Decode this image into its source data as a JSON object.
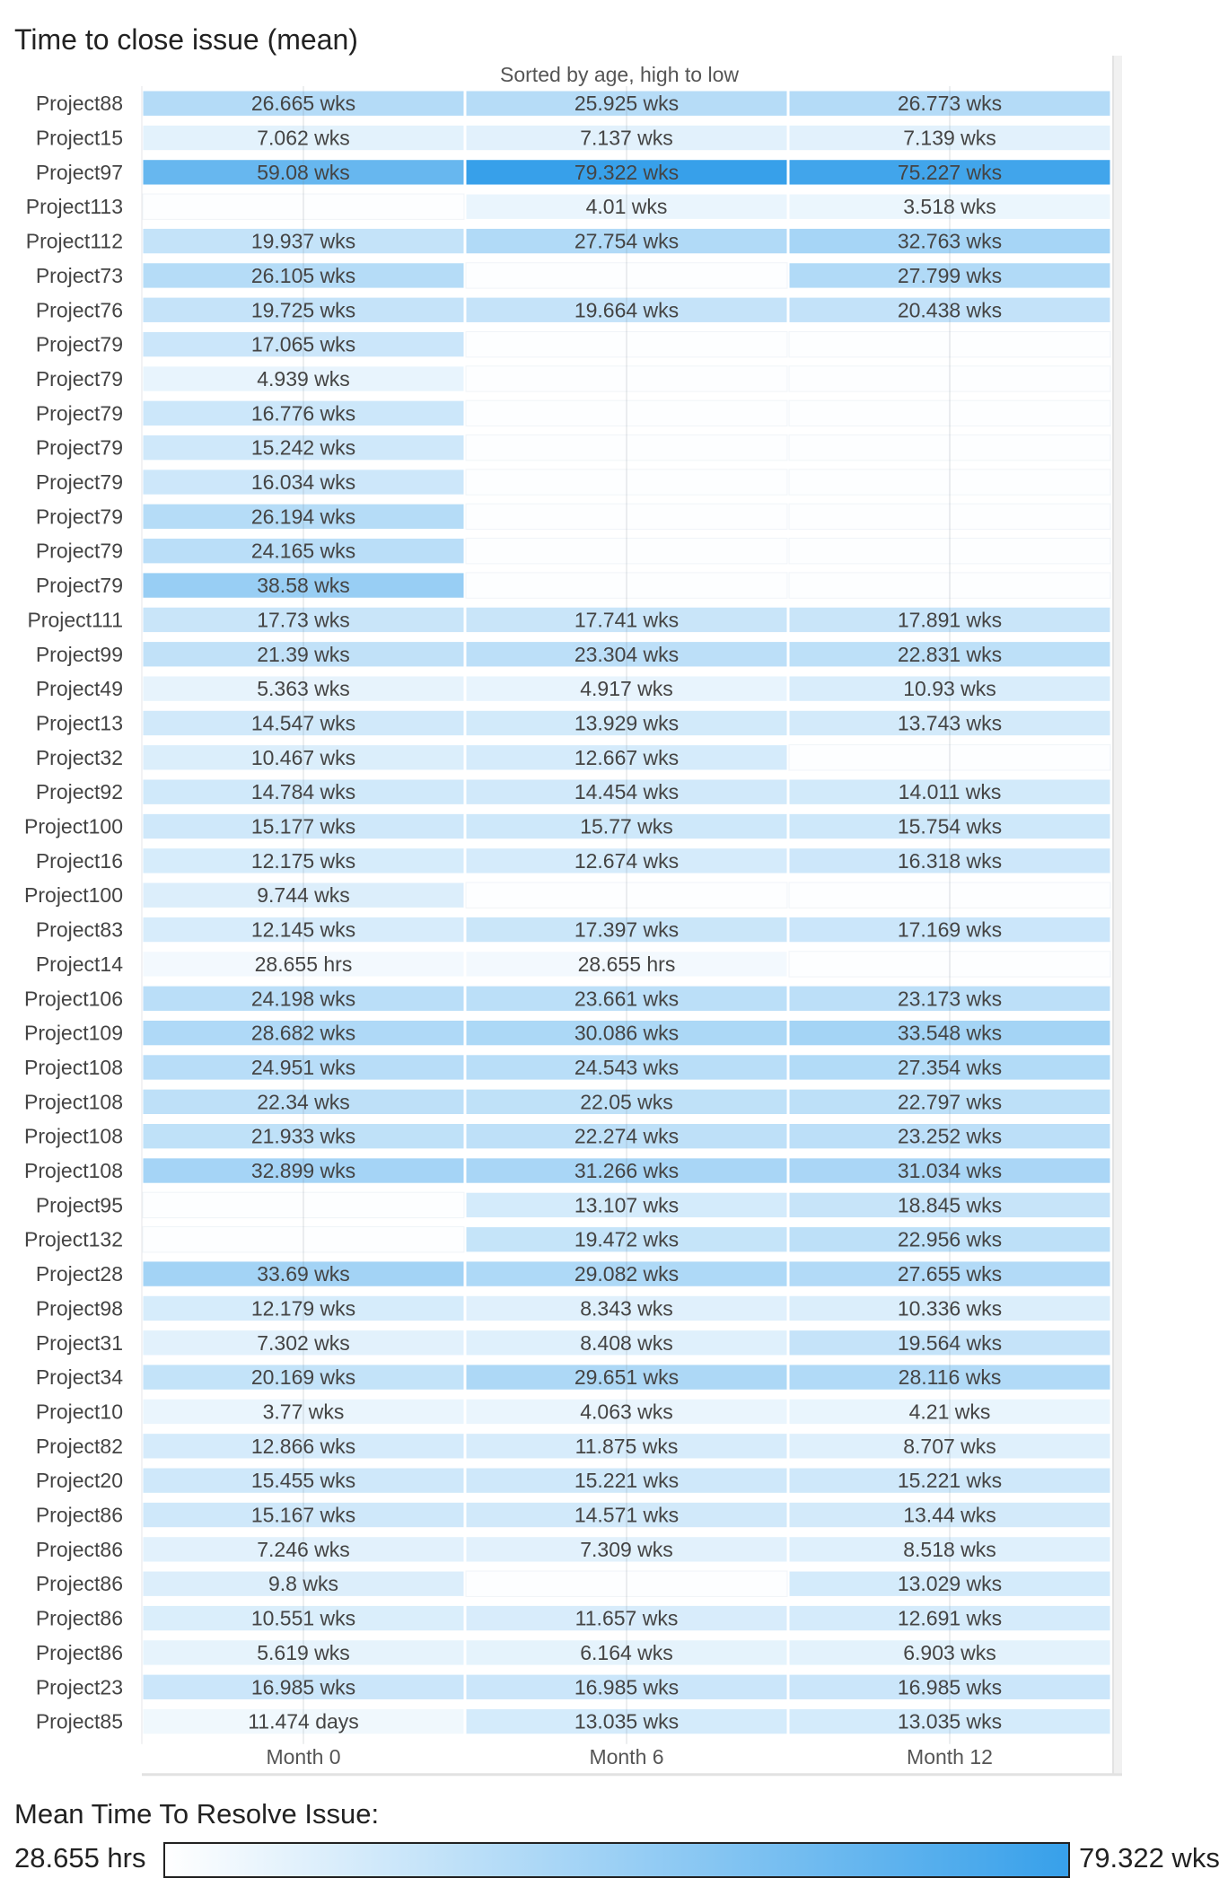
{
  "chart_data": {
    "type": "heatmap",
    "title": "Time to close issue (mean)",
    "subtitle": "Sorted by age, high to low",
    "columns": [
      "Month 0",
      "Month 6",
      "Month 12"
    ],
    "rows": [
      {
        "label": "Project88",
        "cells": [
          {
            "text": "26.665 wks",
            "value": 26.665
          },
          {
            "text": "25.925 wks",
            "value": 25.925
          },
          {
            "text": "26.773 wks",
            "value": 26.773
          }
        ]
      },
      {
        "label": "Project15",
        "cells": [
          {
            "text": "7.062 wks",
            "value": 7.062
          },
          {
            "text": "7.137 wks",
            "value": 7.137
          },
          {
            "text": "7.139 wks",
            "value": 7.139
          }
        ]
      },
      {
        "label": "Project97",
        "cells": [
          {
            "text": "59.08 wks",
            "value": 59.08
          },
          {
            "text": "79.322 wks",
            "value": 79.322
          },
          {
            "text": "75.227 wks",
            "value": 75.227
          }
        ]
      },
      {
        "label": "Project113",
        "cells": [
          null,
          {
            "text": "4.01 wks",
            "value": 4.01
          },
          {
            "text": "3.518 wks",
            "value": 3.518
          }
        ]
      },
      {
        "label": "Project112",
        "cells": [
          {
            "text": "19.937 wks",
            "value": 19.937
          },
          {
            "text": "27.754 wks",
            "value": 27.754
          },
          {
            "text": "32.763 wks",
            "value": 32.763
          }
        ]
      },
      {
        "label": "Project73",
        "cells": [
          {
            "text": "26.105 wks",
            "value": 26.105
          },
          null,
          {
            "text": "27.799 wks",
            "value": 27.799
          }
        ]
      },
      {
        "label": "Project76",
        "cells": [
          {
            "text": "19.725 wks",
            "value": 19.725
          },
          {
            "text": "19.664 wks",
            "value": 19.664
          },
          {
            "text": "20.438 wks",
            "value": 20.438
          }
        ]
      },
      {
        "label": "Project79",
        "cells": [
          {
            "text": "17.065 wks",
            "value": 17.065
          },
          null,
          null
        ]
      },
      {
        "label": "Project79",
        "cells": [
          {
            "text": "4.939 wks",
            "value": 4.939
          },
          null,
          null
        ]
      },
      {
        "label": "Project79",
        "cells": [
          {
            "text": "16.776 wks",
            "value": 16.776
          },
          null,
          null
        ]
      },
      {
        "label": "Project79",
        "cells": [
          {
            "text": "15.242 wks",
            "value": 15.242
          },
          null,
          null
        ]
      },
      {
        "label": "Project79",
        "cells": [
          {
            "text": "16.034 wks",
            "value": 16.034
          },
          null,
          null
        ]
      },
      {
        "label": "Project79",
        "cells": [
          {
            "text": "26.194 wks",
            "value": 26.194
          },
          null,
          null
        ]
      },
      {
        "label": "Project79",
        "cells": [
          {
            "text": "24.165 wks",
            "value": 24.165
          },
          null,
          null
        ]
      },
      {
        "label": "Project79",
        "cells": [
          {
            "text": "38.58 wks",
            "value": 38.58
          },
          null,
          null
        ]
      },
      {
        "label": "Project111",
        "cells": [
          {
            "text": "17.73 wks",
            "value": 17.73
          },
          {
            "text": "17.741 wks",
            "value": 17.741
          },
          {
            "text": "17.891 wks",
            "value": 17.891
          }
        ]
      },
      {
        "label": "Project99",
        "cells": [
          {
            "text": "21.39 wks",
            "value": 21.39
          },
          {
            "text": "23.304 wks",
            "value": 23.304
          },
          {
            "text": "22.831 wks",
            "value": 22.831
          }
        ]
      },
      {
        "label": "Project49",
        "cells": [
          {
            "text": "5.363 wks",
            "value": 5.363
          },
          {
            "text": "4.917 wks",
            "value": 4.917
          },
          {
            "text": "10.93 wks",
            "value": 10.93
          }
        ]
      },
      {
        "label": "Project13",
        "cells": [
          {
            "text": "14.547 wks",
            "value": 14.547
          },
          {
            "text": "13.929 wks",
            "value": 13.929
          },
          {
            "text": "13.743 wks",
            "value": 13.743
          }
        ]
      },
      {
        "label": "Project32",
        "cells": [
          {
            "text": "10.467 wks",
            "value": 10.467
          },
          {
            "text": "12.667 wks",
            "value": 12.667
          },
          null
        ]
      },
      {
        "label": "Project92",
        "cells": [
          {
            "text": "14.784 wks",
            "value": 14.784
          },
          {
            "text": "14.454 wks",
            "value": 14.454
          },
          {
            "text": "14.011 wks",
            "value": 14.011
          }
        ]
      },
      {
        "label": "Project100",
        "cells": [
          {
            "text": "15.177 wks",
            "value": 15.177
          },
          {
            "text": "15.77 wks",
            "value": 15.77
          },
          {
            "text": "15.754 wks",
            "value": 15.754
          }
        ]
      },
      {
        "label": "Project16",
        "cells": [
          {
            "text": "12.175 wks",
            "value": 12.175
          },
          {
            "text": "12.674 wks",
            "value": 12.674
          },
          {
            "text": "16.318 wks",
            "value": 16.318
          }
        ]
      },
      {
        "label": "Project100",
        "cells": [
          {
            "text": "9.744 wks",
            "value": 9.744
          },
          null,
          null
        ]
      },
      {
        "label": "Project83",
        "cells": [
          {
            "text": "12.145 wks",
            "value": 12.145
          },
          {
            "text": "17.397 wks",
            "value": 17.397
          },
          {
            "text": "17.169 wks",
            "value": 17.169
          }
        ]
      },
      {
        "label": "Project14",
        "cells": [
          {
            "text": "28.655 hrs",
            "value": 0.17
          },
          {
            "text": "28.655 hrs",
            "value": 0.17
          },
          null
        ]
      },
      {
        "label": "Project106",
        "cells": [
          {
            "text": "24.198 wks",
            "value": 24.198
          },
          {
            "text": "23.661 wks",
            "value": 23.661
          },
          {
            "text": "23.173 wks",
            "value": 23.173
          }
        ]
      },
      {
        "label": "Project109",
        "cells": [
          {
            "text": "28.682 wks",
            "value": 28.682
          },
          {
            "text": "30.086 wks",
            "value": 30.086
          },
          {
            "text": "33.548 wks",
            "value": 33.548
          }
        ]
      },
      {
        "label": "Project108",
        "cells": [
          {
            "text": "24.951 wks",
            "value": 24.951
          },
          {
            "text": "24.543 wks",
            "value": 24.543
          },
          {
            "text": "27.354 wks",
            "value": 27.354
          }
        ]
      },
      {
        "label": "Project108",
        "cells": [
          {
            "text": "22.34 wks",
            "value": 22.34
          },
          {
            "text": "22.05 wks",
            "value": 22.05
          },
          {
            "text": "22.797 wks",
            "value": 22.797
          }
        ]
      },
      {
        "label": "Project108",
        "cells": [
          {
            "text": "21.933 wks",
            "value": 21.933
          },
          {
            "text": "22.274 wks",
            "value": 22.274
          },
          {
            "text": "23.252 wks",
            "value": 23.252
          }
        ]
      },
      {
        "label": "Project108",
        "cells": [
          {
            "text": "32.899 wks",
            "value": 32.899
          },
          {
            "text": "31.266 wks",
            "value": 31.266
          },
          {
            "text": "31.034 wks",
            "value": 31.034
          }
        ]
      },
      {
        "label": "Project95",
        "cells": [
          null,
          {
            "text": "13.107 wks",
            "value": 13.107
          },
          {
            "text": "18.845 wks",
            "value": 18.845
          }
        ]
      },
      {
        "label": "Project132",
        "cells": [
          null,
          {
            "text": "19.472 wks",
            "value": 19.472
          },
          {
            "text": "22.956 wks",
            "value": 22.956
          }
        ]
      },
      {
        "label": "Project28",
        "cells": [
          {
            "text": "33.69 wks",
            "value": 33.69
          },
          {
            "text": "29.082 wks",
            "value": 29.082
          },
          {
            "text": "27.655 wks",
            "value": 27.655
          }
        ]
      },
      {
        "label": "Project98",
        "cells": [
          {
            "text": "12.179 wks",
            "value": 12.179
          },
          {
            "text": "8.343 wks",
            "value": 8.343
          },
          {
            "text": "10.336 wks",
            "value": 10.336
          }
        ]
      },
      {
        "label": "Project31",
        "cells": [
          {
            "text": "7.302 wks",
            "value": 7.302
          },
          {
            "text": "8.408 wks",
            "value": 8.408
          },
          {
            "text": "19.564 wks",
            "value": 19.564
          }
        ]
      },
      {
        "label": "Project34",
        "cells": [
          {
            "text": "20.169 wks",
            "value": 20.169
          },
          {
            "text": "29.651 wks",
            "value": 29.651
          },
          {
            "text": "28.116 wks",
            "value": 28.116
          }
        ]
      },
      {
        "label": "Project10",
        "cells": [
          {
            "text": "3.77 wks",
            "value": 3.77
          },
          {
            "text": "4.063 wks",
            "value": 4.063
          },
          {
            "text": "4.21 wks",
            "value": 4.21
          }
        ]
      },
      {
        "label": "Project82",
        "cells": [
          {
            "text": "12.866 wks",
            "value": 12.866
          },
          {
            "text": "11.875 wks",
            "value": 11.875
          },
          {
            "text": "8.707 wks",
            "value": 8.707
          }
        ]
      },
      {
        "label": "Project20",
        "cells": [
          {
            "text": "15.455 wks",
            "value": 15.455
          },
          {
            "text": "15.221 wks",
            "value": 15.221
          },
          {
            "text": "15.221 wks",
            "value": 15.221
          }
        ]
      },
      {
        "label": "Project86",
        "cells": [
          {
            "text": "15.167 wks",
            "value": 15.167
          },
          {
            "text": "14.571 wks",
            "value": 14.571
          },
          {
            "text": "13.44 wks",
            "value": 13.44
          }
        ]
      },
      {
        "label": "Project86",
        "cells": [
          {
            "text": "7.246 wks",
            "value": 7.246
          },
          {
            "text": "7.309 wks",
            "value": 7.309
          },
          {
            "text": "8.518 wks",
            "value": 8.518
          }
        ]
      },
      {
        "label": "Project86",
        "cells": [
          {
            "text": "9.8 wks",
            "value": 9.8
          },
          null,
          {
            "text": "13.029 wks",
            "value": 13.029
          }
        ]
      },
      {
        "label": "Project86",
        "cells": [
          {
            "text": "10.551 wks",
            "value": 10.551
          },
          {
            "text": "11.657 wks",
            "value": 11.657
          },
          {
            "text": "12.691 wks",
            "value": 12.691
          }
        ]
      },
      {
        "label": "Project86",
        "cells": [
          {
            "text": "5.619 wks",
            "value": 5.619
          },
          {
            "text": "6.164 wks",
            "value": 6.164
          },
          {
            "text": "6.903 wks",
            "value": 6.903
          }
        ]
      },
      {
        "label": "Project23",
        "cells": [
          {
            "text": "16.985 wks",
            "value": 16.985
          },
          {
            "text": "16.985 wks",
            "value": 16.985
          },
          {
            "text": "16.985 wks",
            "value": 16.985
          }
        ]
      },
      {
        "label": "Project85",
        "cells": [
          {
            "text": "11.474 days",
            "value": 1.639
          },
          {
            "text": "13.035 wks",
            "value": 13.035
          },
          {
            "text": "13.035 wks",
            "value": 13.035
          }
        ]
      }
    ],
    "color_scale": {
      "title": "Mean Time To Resolve Issue:",
      "min_label": "28.655 hrs",
      "max_label": "79.322 wks",
      "min_value": 0.17,
      "max_value": 79.322,
      "min_color": "#ffffff",
      "max_color": "#37a0ea"
    },
    "grid": true
  }
}
